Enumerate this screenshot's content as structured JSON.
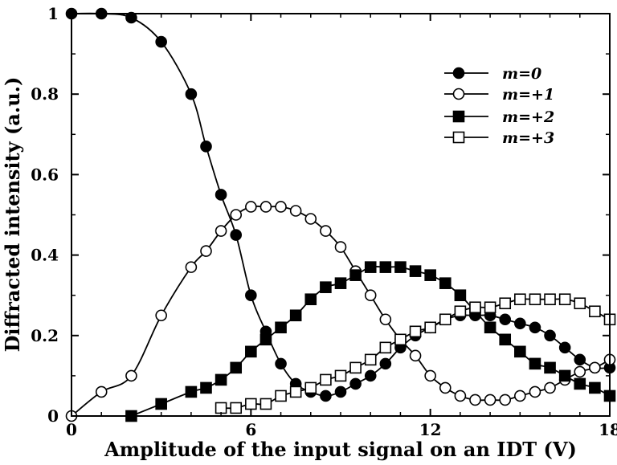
{
  "chart_data": {
    "type": "line",
    "title": "",
    "xlabel": "Amplitude of the input signal on an IDT (V)",
    "ylabel": "Diffracted intensity (a.u.)",
    "xlim": [
      0,
      18
    ],
    "ylim": [
      0,
      1
    ],
    "x_ticks": [
      "0",
      "6",
      "12",
      "18"
    ],
    "y_ticks": [
      "0",
      "0.2",
      "0.4",
      "0.6",
      "0.8",
      "1"
    ],
    "legend_position": "top-right",
    "grid": false,
    "series": [
      {
        "name": "m=0",
        "name_italic": "m",
        "name_rest": "=0",
        "marker": "filled-circle",
        "x": [
          0.0,
          1.0,
          2.0,
          3.0,
          4.0,
          4.5,
          5.0,
          5.5,
          6.0,
          6.5,
          7.0,
          7.5,
          8.0,
          8.5,
          9.0,
          9.5,
          10.0,
          10.5,
          11.0,
          11.5,
          12.0,
          12.5,
          13.0,
          13.5,
          14.0,
          14.5,
          15.0,
          15.5,
          16.0,
          16.5,
          17.0,
          17.5,
          18.0
        ],
        "y": [
          1.0,
          1.0,
          0.99,
          0.93,
          0.8,
          0.67,
          0.55,
          0.45,
          0.3,
          0.21,
          0.13,
          0.08,
          0.06,
          0.05,
          0.06,
          0.08,
          0.1,
          0.13,
          0.17,
          0.2,
          0.22,
          0.24,
          0.25,
          0.25,
          0.25,
          0.24,
          0.23,
          0.22,
          0.2,
          0.17,
          0.14,
          0.12,
          0.12
        ]
      },
      {
        "name": "m=+1",
        "name_italic": "m",
        "name_rest": "=+1",
        "marker": "open-circle",
        "x": [
          0.0,
          1.0,
          2.0,
          3.0,
          4.0,
          4.5,
          5.0,
          5.5,
          6.0,
          6.5,
          7.0,
          7.5,
          8.0,
          8.5,
          9.0,
          9.5,
          10.0,
          10.5,
          11.0,
          11.5,
          12.0,
          12.5,
          13.0,
          13.5,
          14.0,
          14.5,
          15.0,
          15.5,
          16.0,
          16.5,
          17.0,
          17.5,
          18.0
        ],
        "y": [
          0.0,
          0.06,
          0.1,
          0.25,
          0.37,
          0.41,
          0.46,
          0.5,
          0.52,
          0.52,
          0.52,
          0.51,
          0.49,
          0.46,
          0.42,
          0.36,
          0.3,
          0.24,
          0.19,
          0.15,
          0.1,
          0.07,
          0.05,
          0.04,
          0.04,
          0.04,
          0.05,
          0.06,
          0.07,
          0.09,
          0.11,
          0.12,
          0.14
        ]
      },
      {
        "name": "m=+2",
        "name_italic": "m",
        "name_rest": "=+2",
        "marker": "filled-square",
        "x": [
          2.0,
          3.0,
          4.0,
          4.5,
          5.0,
          5.5,
          6.0,
          6.5,
          7.0,
          7.5,
          8.0,
          8.5,
          9.0,
          9.5,
          10.0,
          10.5,
          11.0,
          11.5,
          12.0,
          12.5,
          13.0,
          13.5,
          14.0,
          14.5,
          15.0,
          15.5,
          16.0,
          16.5,
          17.0,
          17.5,
          18.0
        ],
        "y": [
          0.0,
          0.03,
          0.06,
          0.07,
          0.09,
          0.12,
          0.16,
          0.19,
          0.22,
          0.25,
          0.29,
          0.32,
          0.33,
          0.35,
          0.37,
          0.37,
          0.37,
          0.36,
          0.35,
          0.33,
          0.3,
          0.26,
          0.22,
          0.19,
          0.16,
          0.13,
          0.12,
          0.1,
          0.08,
          0.07,
          0.05
        ]
      },
      {
        "name": "m=+3",
        "name_italic": "m",
        "name_rest": "=+3",
        "marker": "open-square",
        "x": [
          5.0,
          5.5,
          6.0,
          6.5,
          7.0,
          7.5,
          8.0,
          8.5,
          9.0,
          9.5,
          10.0,
          10.5,
          11.0,
          11.5,
          12.0,
          12.5,
          13.0,
          13.5,
          14.0,
          14.5,
          15.0,
          15.5,
          16.0,
          16.5,
          17.0,
          17.5,
          18.0
        ],
        "y": [
          0.02,
          0.02,
          0.03,
          0.03,
          0.05,
          0.06,
          0.07,
          0.09,
          0.1,
          0.12,
          0.14,
          0.17,
          0.19,
          0.21,
          0.22,
          0.24,
          0.26,
          0.27,
          0.27,
          0.28,
          0.29,
          0.29,
          0.29,
          0.29,
          0.28,
          0.26,
          0.24
        ]
      }
    ]
  }
}
